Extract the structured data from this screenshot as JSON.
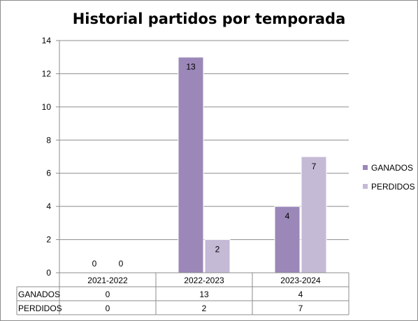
{
  "chart_data": {
    "type": "bar",
    "title": "Historial partidos por temporada",
    "xlabel": "",
    "ylabel": "",
    "categories": [
      "2021-2022",
      "2022-2023",
      "2023-2024"
    ],
    "series": [
      {
        "name": "GANADOS",
        "values": [
          0,
          13,
          4
        ],
        "color": "#9b87b8"
      },
      {
        "name": "PERDIDOS",
        "values": [
          0,
          2,
          7
        ],
        "color": "#c4bad6"
      }
    ],
    "ylim": [
      0,
      14
    ],
    "yticks": [
      0,
      2,
      4,
      6,
      8,
      10,
      12,
      14
    ],
    "grid": true,
    "data_labels": true,
    "legend_position": "right",
    "data_table": true
  }
}
